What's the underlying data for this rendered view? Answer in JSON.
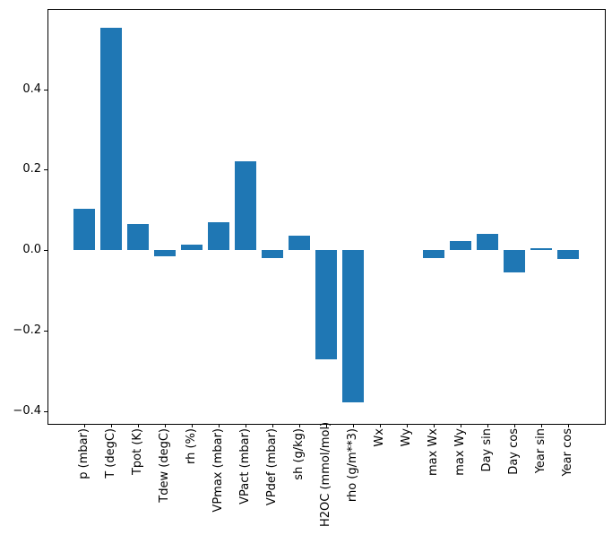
{
  "figure": {
    "background": "#ffffff",
    "title": ""
  },
  "chart_data": {
    "type": "bar",
    "title": "",
    "xlabel": "",
    "ylabel": "",
    "grid": false,
    "legend": "none",
    "bar_color": "#1f77b4",
    "axis_color": "#000000",
    "categories": [
      "p (mbar)",
      "T (degC)",
      "Tpot (K)",
      "Tdew (degC)",
      "rh (%)",
      "VPmax (mbar)",
      "VPact (mbar)",
      "VPdef (mbar)",
      "sh (g/kg)",
      "H2OC (mmol/mol)",
      "rho (g/m**3)",
      "Wx",
      "Wy",
      "max Wx",
      "max Wy",
      "Day sin",
      "Day cos",
      "Year sin",
      "Year cos"
    ],
    "values": [
      0.102,
      0.553,
      0.066,
      -0.015,
      0.013,
      0.07,
      0.222,
      -0.02,
      0.037,
      -0.272,
      -0.378,
      0.0,
      0.0,
      -0.02,
      0.022,
      0.04,
      -0.055,
      0.004,
      -0.021
    ],
    "yticks": [
      {
        "value": 0.4,
        "label": "0.4"
      },
      {
        "value": 0.2,
        "label": "0.2"
      },
      {
        "value": 0.0,
        "label": "0.0"
      },
      {
        "value": -0.2,
        "label": "−0.2"
      },
      {
        "value": -0.4,
        "label": "−0.4"
      }
    ],
    "ylim": [
      -0.43,
      0.6
    ]
  }
}
